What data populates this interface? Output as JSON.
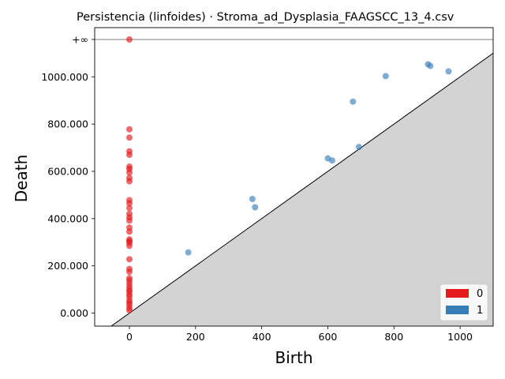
{
  "chart_data": {
    "type": "scatter",
    "title": "Persistencia (linfoides) · Stroma_ad_Dysplasia_FAAGSCC_13_4.csv",
    "xlabel": "Birth",
    "ylabel": "Death",
    "xlim": [
      -105,
      1100
    ],
    "ylim": [
      -105,
      1158
    ],
    "x_ticks": [
      0,
      200,
      400,
      600,
      800,
      1000
    ],
    "x_tick_labels": [
      "0",
      "200",
      "400",
      "600",
      "800",
      "1000"
    ],
    "y_ticks": [
      0,
      200,
      400,
      600,
      800,
      1000
    ],
    "y_tick_labels": [
      "0.000",
      "200.000",
      "400.000",
      "600.000",
      "800.000",
      "1000.000"
    ],
    "infinity_value": 1158,
    "infinity_label": "+∞",
    "grid": false,
    "legend_position": "lower-right",
    "colors": {
      "h0": "#e41a1c",
      "h1": "#377eb8",
      "diagonal_fill": "#d3d3d3",
      "infinity_line": "#7f7f7f"
    },
    "series": [
      {
        "name": "0",
        "color": "#e41a1c",
        "points": [
          [
            0,
            1158
          ],
          [
            0,
            778
          ],
          [
            0,
            743
          ],
          [
            0,
            685
          ],
          [
            0,
            670
          ],
          [
            0,
            620
          ],
          [
            0,
            610
          ],
          [
            0,
            595
          ],
          [
            0,
            572
          ],
          [
            0,
            558
          ],
          [
            0,
            478
          ],
          [
            0,
            465
          ],
          [
            0,
            445
          ],
          [
            0,
            420
          ],
          [
            0,
            405
          ],
          [
            0,
            392
          ],
          [
            0,
            362
          ],
          [
            0,
            345
          ],
          [
            0,
            312
          ],
          [
            0,
            305
          ],
          [
            0,
            298
          ],
          [
            0,
            285
          ],
          [
            0,
            228
          ],
          [
            0,
            187
          ],
          [
            0,
            175
          ],
          [
            0,
            148
          ],
          [
            0,
            138
          ],
          [
            0,
            125
          ],
          [
            0,
            112
          ],
          [
            0,
            100
          ],
          [
            0,
            92
          ],
          [
            0,
            80
          ],
          [
            0,
            70
          ],
          [
            0,
            55
          ],
          [
            0,
            45
          ],
          [
            0,
            35
          ],
          [
            0,
            22
          ],
          [
            0,
            12
          ]
        ]
      },
      {
        "name": "1",
        "color": "#377eb8",
        "points": [
          [
            178,
            257
          ],
          [
            372,
            483
          ],
          [
            380,
            448
          ],
          [
            600,
            655
          ],
          [
            613,
            646
          ],
          [
            676,
            895
          ],
          [
            694,
            703
          ],
          [
            775,
            1003
          ],
          [
            903,
            1053
          ],
          [
            910,
            1046
          ],
          [
            965,
            1023
          ]
        ]
      }
    ]
  }
}
